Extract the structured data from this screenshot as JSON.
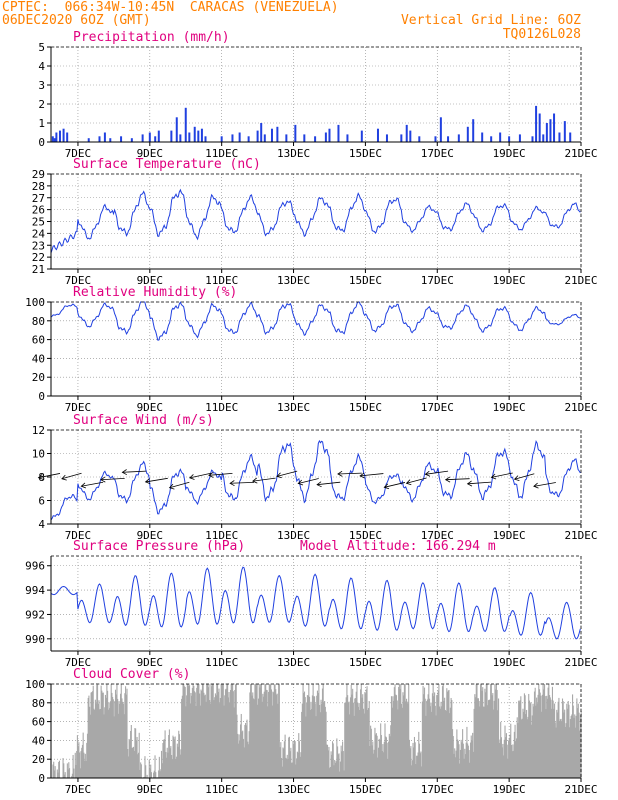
{
  "header": {
    "line1_left": "CPTEC:  066:34W-10:45N  CARACAS (VENEZUELA)",
    "line2_left": "06DEC2020 6OZ (GMT)",
    "line1_right": "Vertical Grid Line: 6OZ",
    "line2_right": "TQ0126L028",
    "text_color": "#ff8000"
  },
  "colors": {
    "line": "#2040e0",
    "fill_gray": "#a8a8a8",
    "title": "#e0007f",
    "grid": "#888888"
  },
  "x_axis": {
    "tick_labels": [
      "7DEC",
      "9DEC",
      "11DEC",
      "13DEC",
      "15DEC",
      "17DEC",
      "19DEC",
      "21DEC"
    ],
    "tick_days": [
      7,
      9,
      11,
      13,
      15,
      17,
      19,
      21
    ],
    "range_days": [
      6.25,
      21.0
    ]
  },
  "chart_data": [
    {
      "type": "bar",
      "title": "Precipitation (mm/h)",
      "ylim": [
        0,
        5
      ],
      "yticks": [
        0,
        1,
        2,
        3,
        4,
        5
      ],
      "x": [
        6.3,
        6.35,
        6.4,
        6.5,
        6.6,
        6.7,
        7.3,
        7.6,
        7.75,
        7.9,
        8.2,
        8.5,
        8.8,
        9.0,
        9.15,
        9.25,
        9.6,
        9.75,
        9.85,
        10.0,
        10.1,
        10.25,
        10.35,
        10.45,
        10.55,
        11.0,
        11.3,
        11.5,
        11.75,
        12.0,
        12.1,
        12.2,
        12.4,
        12.55,
        12.8,
        13.05,
        13.3,
        13.6,
        13.9,
        14.0,
        14.25,
        14.5,
        14.9,
        15.35,
        15.6,
        16.0,
        16.15,
        16.25,
        16.5,
        16.95,
        17.1,
        17.3,
        17.6,
        17.85,
        18.0,
        18.25,
        18.5,
        18.75,
        19.0,
        19.3,
        19.65,
        19.75,
        19.85,
        19.95,
        20.05,
        20.15,
        20.25,
        20.4,
        20.55,
        20.7
      ],
      "values": [
        0.3,
        0.2,
        0.5,
        0.6,
        0.7,
        0.5,
        0.2,
        0.3,
        0.5,
        0.2,
        0.3,
        0.2,
        0.4,
        0.5,
        0.3,
        0.6,
        0.6,
        1.3,
        0.4,
        1.8,
        0.5,
        0.8,
        0.6,
        0.7,
        0.3,
        0.3,
        0.4,
        0.5,
        0.3,
        0.6,
        1.0,
        0.4,
        0.7,
        0.8,
        0.4,
        0.9,
        0.4,
        0.3,
        0.5,
        0.7,
        0.9,
        0.4,
        0.6,
        0.7,
        0.4,
        0.4,
        0.9,
        0.6,
        0.3,
        0.3,
        1.3,
        0.3,
        0.4,
        0.8,
        1.2,
        0.5,
        0.3,
        0.5,
        0.3,
        0.4,
        0.3,
        1.9,
        1.5,
        0.4,
        1.0,
        1.2,
        1.5,
        0.5,
        1.1,
        0.5
      ]
    },
    {
      "type": "line",
      "title": "Surface Temperature (nC)",
      "ylim": [
        21,
        29
      ],
      "yticks": [
        21,
        22,
        23,
        24,
        25,
        26,
        27,
        28,
        29
      ],
      "daily_curve": {
        "start_day": 6.25,
        "end_day": 21.0,
        "start_value": 22.6,
        "amplitude": 1.6,
        "mean": 25.3,
        "days": [
          6,
          7,
          8,
          9,
          10,
          11,
          12,
          13,
          14,
          15,
          16,
          17,
          18,
          19,
          20
        ],
        "maxima": [
          24.0,
          26.2,
          27.2,
          27.5,
          27.0,
          26.9,
          26.7,
          26.9,
          27.0,
          26.9,
          26.2,
          26.4,
          26.4,
          26.1,
          26.4
        ],
        "minima": [
          22.8,
          23.7,
          24.0,
          24.0,
          23.9,
          24.1,
          24.0,
          24.1,
          24.2,
          24.2,
          24.3,
          24.3,
          24.3,
          24.4,
          24.5
        ]
      }
    },
    {
      "type": "line",
      "title": "Relative Humidity (%)",
      "ylim": [
        0,
        100
      ],
      "yticks": [
        0,
        20,
        40,
        60,
        80,
        100
      ],
      "daily_curve": {
        "start_day": 6.25,
        "end_day": 21.0,
        "days": [
          6,
          7,
          8,
          9,
          10,
          11,
          12,
          13,
          14,
          15,
          16,
          17,
          18,
          19,
          20
        ],
        "maxima": [
          97,
          97,
          100,
          98,
          96,
          96,
          98,
          96,
          98,
          97,
          93,
          95,
          94,
          93,
          86
        ],
        "minima": [
          85,
          75,
          68,
          62,
          66,
          67,
          68,
          68,
          67,
          70,
          70,
          72,
          70,
          71,
          76
        ]
      }
    },
    {
      "type": "line",
      "title": "Surface Wind (m/s)",
      "ylim": [
        4,
        12
      ],
      "yticks": [
        4,
        6,
        8,
        10,
        12
      ],
      "daily_curve": {
        "start_day": 6.25,
        "end_day": 21.0,
        "days": [
          6,
          7,
          8,
          9,
          10,
          11,
          12,
          13,
          14,
          15,
          16,
          17,
          18,
          19,
          20
        ],
        "maxima": [
          6.4,
          8.3,
          9.0,
          8.5,
          8.4,
          9.5,
          10.8,
          10.9,
          9.5,
          8.2,
          9.0,
          9.8,
          10.2,
          10.6,
          9.3
        ],
        "minima": [
          4.5,
          6.2,
          6.0,
          5.1,
          6.0,
          6.1,
          6.3,
          6.4,
          6.1,
          5.9,
          6.2,
          6.3,
          6.4,
          6.5,
          6.4
        ]
      },
      "barbs_description": "wind direction arrows from the east-northeast"
    },
    {
      "type": "line",
      "title": "Surface Pressure (hPa)",
      "subtitle": "Model Altitude: 166.294 m",
      "ylim": [
        989,
        996.8
      ],
      "yticks": [
        990,
        992,
        994,
        996
      ],
      "semi_diurnal_curve": {
        "start_day": 6.25,
        "end_day": 21.0,
        "days": [
          6,
          7,
          8,
          9,
          10,
          11,
          12,
          13,
          14,
          15,
          16,
          17,
          18,
          19,
          20
        ],
        "maxima": [
          994.3,
          994.5,
          995.2,
          995.4,
          995.8,
          995.9,
          995.2,
          995.3,
          995.0,
          994.8,
          994.6,
          994.6,
          994.2,
          993.8,
          993.0
        ],
        "minima": [
          993.5,
          990.7,
          990.3,
          990.1,
          990.3,
          990.4,
          990.6,
          990.2,
          990.0,
          989.9,
          990.1,
          989.8,
          989.9,
          989.6,
          989.4
        ]
      }
    },
    {
      "type": "area",
      "title": "Cloud Cover (%)",
      "ylim": [
        0,
        100
      ],
      "yticks": [
        0,
        20,
        40,
        60,
        80,
        100
      ],
      "segments_days": [
        [
          6.25,
          6.9
        ],
        [
          6.9,
          7.25
        ],
        [
          7.25,
          8.35
        ],
        [
          8.35,
          8.7
        ],
        [
          8.7,
          9.3
        ],
        [
          9.3,
          9.85
        ],
        [
          9.85,
          11.4
        ],
        [
          11.4,
          11.75
        ],
        [
          11.75,
          12.6
        ],
        [
          12.6,
          13.2
        ],
        [
          13.2,
          13.9
        ],
        [
          13.9,
          14.4
        ],
        [
          14.4,
          15.1
        ],
        [
          15.1,
          15.7
        ],
        [
          15.7,
          16.2
        ],
        [
          16.2,
          16.55
        ],
        [
          16.55,
          17.4
        ],
        [
          17.4,
          18.0
        ],
        [
          18.0,
          18.7
        ],
        [
          18.7,
          19.2
        ],
        [
          19.2,
          19.7
        ],
        [
          19.7,
          20.2
        ],
        [
          20.2,
          21.0
        ]
      ],
      "segments_levels": [
        5,
        30,
        85,
        40,
        5,
        35,
        95,
        50,
        95,
        30,
        85,
        25,
        85,
        40,
        90,
        30,
        85,
        35,
        90,
        40,
        75,
        90,
        70
      ]
    }
  ]
}
